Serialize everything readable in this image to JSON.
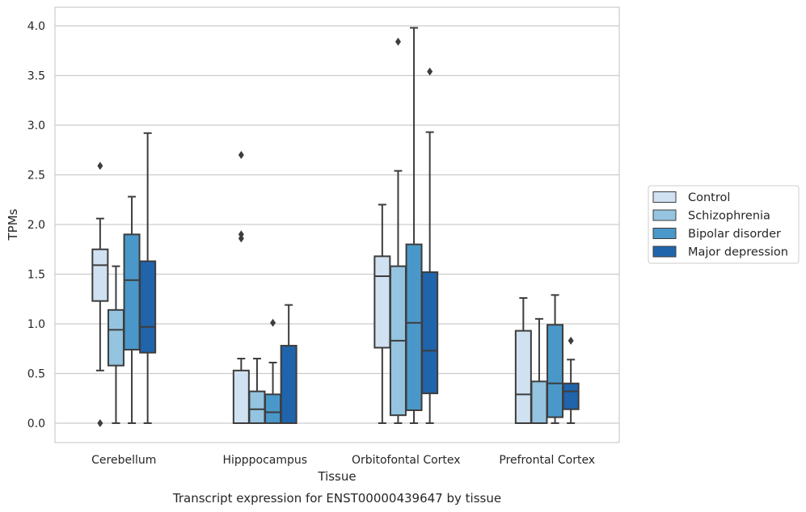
{
  "chart_data": {
    "type": "boxplot",
    "caption": "Transcript expression for ENST00000439647 by tissue",
    "xlabel": "Tissue",
    "ylabel": "TPMs",
    "ylim": [
      -0.19,
      4.19
    ],
    "yticks": [
      "0.0",
      "0.5",
      "1.0",
      "1.5",
      "2.0",
      "2.5",
      "3.0",
      "3.5",
      "4.0"
    ],
    "grid": "horizontal",
    "legend_position": "right-center",
    "categories": [
      "Cerebellum",
      "Hipppocampus",
      "Orbitofontal Cortex",
      "Prefrontal Cortex"
    ],
    "series": [
      {
        "name": "Control",
        "color": "#d0e1f2",
        "boxes": [
          {
            "whisker_low": 0.53,
            "q1": 1.23,
            "median": 1.59,
            "q3": 1.75,
            "whisker_high": 2.06,
            "outliers": [
              2.59,
              0.0
            ]
          },
          {
            "whisker_low": 0.0,
            "q1": 0.0,
            "median": 0.0,
            "q3": 0.53,
            "whisker_high": 0.65,
            "outliers": [
              2.7,
              1.9,
              1.86
            ]
          },
          {
            "whisker_low": 0.0,
            "q1": 0.76,
            "median": 1.48,
            "q3": 1.68,
            "whisker_high": 2.2,
            "outliers": []
          },
          {
            "whisker_low": 0.0,
            "q1": 0.0,
            "median": 0.29,
            "q3": 0.93,
            "whisker_high": 1.26,
            "outliers": []
          }
        ]
      },
      {
        "name": "Schizophrenia",
        "color": "#94c4df",
        "boxes": [
          {
            "whisker_low": 0.0,
            "q1": 0.58,
            "median": 0.94,
            "q3": 1.14,
            "whisker_high": 1.58,
            "outliers": []
          },
          {
            "whisker_low": 0.0,
            "q1": 0.0,
            "median": 0.14,
            "q3": 0.32,
            "whisker_high": 0.65,
            "outliers": []
          },
          {
            "whisker_low": 0.0,
            "q1": 0.08,
            "median": 0.83,
            "q3": 1.58,
            "whisker_high": 2.54,
            "outliers": [
              3.84
            ]
          },
          {
            "whisker_low": 0.0,
            "q1": 0.0,
            "median": 0.0,
            "q3": 0.42,
            "whisker_high": 1.05,
            "outliers": []
          }
        ]
      },
      {
        "name": "Bipolar disorder",
        "color": "#4a98c9",
        "boxes": [
          {
            "whisker_low": 0.0,
            "q1": 0.74,
            "median": 1.44,
            "q3": 1.9,
            "whisker_high": 2.28,
            "outliers": []
          },
          {
            "whisker_low": 0.0,
            "q1": 0.0,
            "median": 0.11,
            "q3": 0.29,
            "whisker_high": 0.61,
            "outliers": [
              1.01
            ]
          },
          {
            "whisker_low": 0.0,
            "q1": 0.13,
            "median": 1.01,
            "q3": 1.8,
            "whisker_high": 3.98,
            "outliers": []
          },
          {
            "whisker_low": 0.0,
            "q1": 0.06,
            "median": 0.4,
            "q3": 0.99,
            "whisker_high": 1.29,
            "outliers": []
          }
        ]
      },
      {
        "name": "Major depression",
        "color": "#2064ac",
        "boxes": [
          {
            "whisker_low": 0.0,
            "q1": 0.71,
            "median": 0.97,
            "q3": 1.63,
            "whisker_high": 2.92,
            "outliers": []
          },
          {
            "whisker_low": 0.0,
            "q1": 0.0,
            "median": 0.0,
            "q3": 0.78,
            "whisker_high": 1.19,
            "outliers": []
          },
          {
            "whisker_low": 0.0,
            "q1": 0.3,
            "median": 0.73,
            "q3": 1.52,
            "whisker_high": 2.93,
            "outliers": [
              3.54
            ]
          },
          {
            "whisker_low": 0.0,
            "q1": 0.14,
            "median": 0.32,
            "q3": 0.4,
            "whisker_high": 0.64,
            "outliers": [
              0.83
            ]
          }
        ]
      }
    ]
  }
}
